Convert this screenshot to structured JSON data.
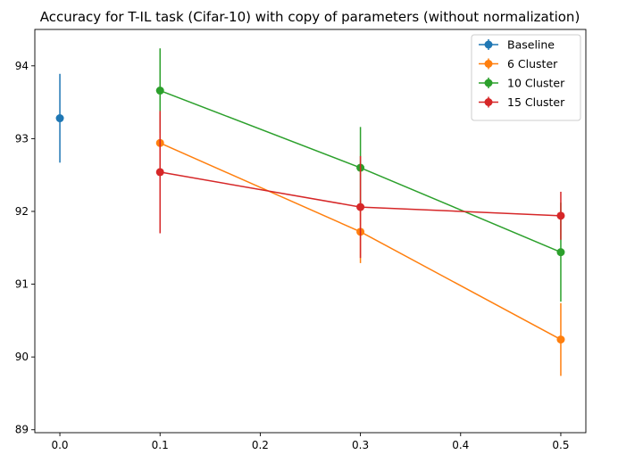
{
  "chart_data": {
    "type": "line",
    "title": "Accuracy for T-IL task (Cifar-10) with copy of parameters (without normalization)",
    "xlabel": "",
    "ylabel": "",
    "xlim": [
      -0.025,
      0.525
    ],
    "ylim": [
      88.96,
      94.5
    ],
    "x_ticks": [
      0.0,
      0.1,
      0.2,
      0.3,
      0.4,
      0.5
    ],
    "x_tick_labels": [
      "0.0",
      "0.1",
      "0.2",
      "0.3",
      "0.4",
      "0.5"
    ],
    "y_ticks": [
      89,
      90,
      91,
      92,
      93,
      94
    ],
    "y_tick_labels": [
      "89",
      "90",
      "91",
      "92",
      "93",
      "94"
    ],
    "grid": false,
    "legend_position": "top-right",
    "error_bars": true,
    "series": [
      {
        "name": "Baseline",
        "color": "#1f77b4",
        "points": [
          {
            "x": 0.0,
            "y": 93.28,
            "err": 0.61
          }
        ]
      },
      {
        "name": "6 Cluster",
        "color": "#ff7f0e",
        "points": [
          {
            "x": 0.1,
            "y": 92.94,
            "err": 0.43
          },
          {
            "x": 0.3,
            "y": 91.72,
            "err": 0.43
          },
          {
            "x": 0.5,
            "y": 90.24,
            "err": 0.5
          }
        ]
      },
      {
        "name": "10 Cluster",
        "color": "#2ca02c",
        "points": [
          {
            "x": 0.1,
            "y": 93.66,
            "err": 0.58
          },
          {
            "x": 0.3,
            "y": 92.6,
            "err": 0.56
          },
          {
            "x": 0.5,
            "y": 91.44,
            "err": 0.68
          }
        ]
      },
      {
        "name": "15 Cluster",
        "color": "#d62728",
        "points": [
          {
            "x": 0.1,
            "y": 92.54,
            "err": 0.84
          },
          {
            "x": 0.3,
            "y": 92.06,
            "err": 0.7
          },
          {
            "x": 0.5,
            "y": 91.94,
            "err": 0.33
          }
        ]
      }
    ]
  }
}
